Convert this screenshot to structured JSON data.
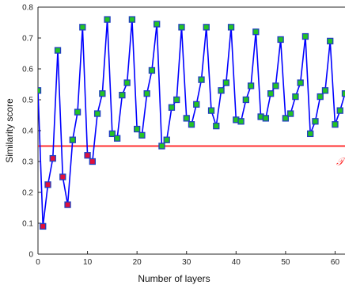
{
  "chart_data": {
    "type": "line",
    "xlabel": "Number of layers",
    "ylabel": "Similarity score",
    "xlim": [
      0,
      62
    ],
    "ylim": [
      0,
      0.8
    ],
    "xticks": [
      0,
      10,
      20,
      30,
      40,
      50,
      60
    ],
    "yticks": [
      0,
      0.1,
      0.2,
      0.3,
      0.4,
      0.5,
      0.6,
      0.7,
      0.8
    ],
    "grid": false,
    "line_color": "#0000ff",
    "marker_edge_color": "#1f3fbf",
    "threshold": {
      "value": 0.35,
      "label": "𝒯",
      "color": "#ff3030"
    },
    "series": [
      {
        "x": [
          0,
          1,
          2,
          3,
          4,
          5,
          6,
          7,
          8,
          9,
          10,
          11,
          12,
          13,
          14,
          15,
          16,
          17,
          18,
          19,
          20,
          21,
          22,
          23,
          24,
          25,
          26,
          27,
          28,
          29,
          30,
          31,
          32,
          33,
          34,
          35,
          36,
          37,
          38,
          39,
          40,
          41,
          42,
          43,
          44,
          45,
          46,
          47,
          48,
          49,
          50,
          51,
          52,
          53,
          54,
          55,
          56,
          57,
          58,
          59,
          60,
          61,
          62
        ],
        "y": [
          0.53,
          0.09,
          0.225,
          0.31,
          0.66,
          0.25,
          0.16,
          0.37,
          0.46,
          0.735,
          0.32,
          0.3,
          0.455,
          0.52,
          0.76,
          0.39,
          0.375,
          0.515,
          0.555,
          0.76,
          0.405,
          0.385,
          0.52,
          0.595,
          0.745,
          0.35,
          0.37,
          0.475,
          0.5,
          0.735,
          0.44,
          0.42,
          0.485,
          0.565,
          0.735,
          0.465,
          0.415,
          0.53,
          0.555,
          0.735,
          0.435,
          0.43,
          0.5,
          0.545,
          0.72,
          0.445,
          0.44,
          0.52,
          0.545,
          0.695,
          0.44,
          0.455,
          0.51,
          0.555,
          0.705,
          0.39,
          0.43,
          0.51,
          0.53,
          0.69,
          0.42,
          0.465,
          0.52
        ],
        "marker_colors": [
          "#23c423",
          "#e0103a",
          "#e0103a",
          "#e0103a",
          "#23c423",
          "#e0103a",
          "#e0103a",
          "#23c423",
          "#23c423",
          "#23c423",
          "#e0103a",
          "#e0103a",
          "#23c423",
          "#23c423",
          "#23c423",
          "#23c423",
          "#23c423",
          "#23c423",
          "#23c423",
          "#23c423",
          "#23c423",
          "#23c423",
          "#23c423",
          "#23c423",
          "#23c423",
          "#23c423",
          "#23c423",
          "#23c423",
          "#23c423",
          "#23c423",
          "#23c423",
          "#23c423",
          "#23c423",
          "#23c423",
          "#23c423",
          "#23c423",
          "#23c423",
          "#23c423",
          "#23c423",
          "#23c423",
          "#23c423",
          "#23c423",
          "#23c423",
          "#23c423",
          "#23c423",
          "#23c423",
          "#23c423",
          "#23c423",
          "#23c423",
          "#23c423",
          "#23c423",
          "#23c423",
          "#23c423",
          "#23c423",
          "#23c423",
          "#23c423",
          "#23c423",
          "#23c423",
          "#23c423",
          "#23c423",
          "#23c423",
          "#23c423",
          "#23c423"
        ]
      }
    ]
  }
}
